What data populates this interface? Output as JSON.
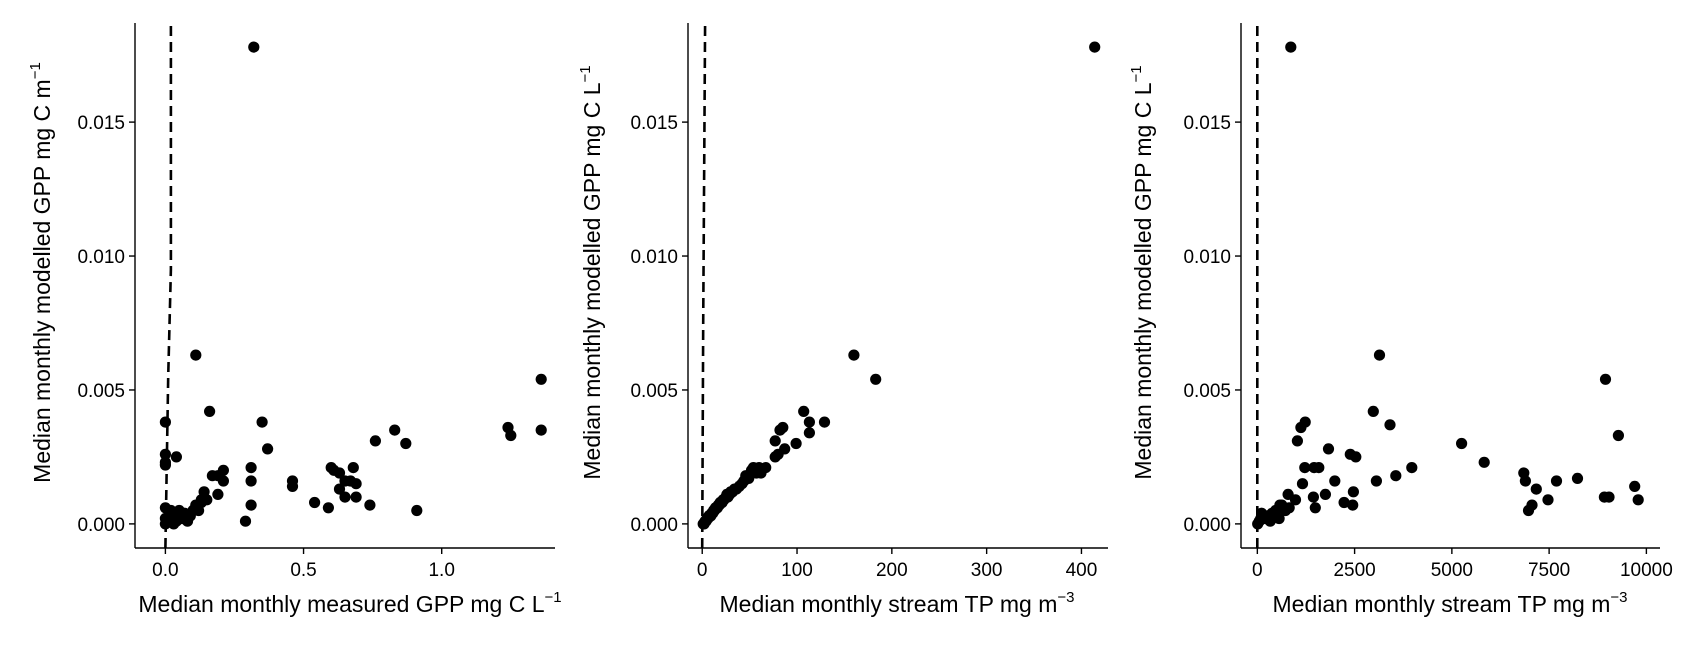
{
  "chart_data": [
    {
      "type": "scatter",
      "xlabel": "Median monthly measured GPP mg C L",
      "xlabel_sup": "−1",
      "ylabel": "Median monthly modelled GPP mg C m",
      "ylabel_sup": "−1",
      "xlim": [
        -0.11,
        1.41
      ],
      "ylim": [
        -0.0009,
        0.0187
      ],
      "xticks": [
        {
          "v": 0.0,
          "label": "0.0"
        },
        {
          "v": 0.5,
          "label": "0.5"
        },
        {
          "v": 1.0,
          "label": "1.0"
        }
      ],
      "yticks": [
        {
          "v": 0.0,
          "label": "0.000"
        },
        {
          "v": 0.005,
          "label": "0.005"
        },
        {
          "v": 0.01,
          "label": "0.010"
        },
        {
          "v": 0.015,
          "label": "0.015"
        }
      ],
      "reference_line": {
        "style": "dashed",
        "points": [
          [
            0.0,
            -0.0009
          ],
          [
            0.01,
            0.0055
          ],
          [
            0.02,
            0.0095
          ],
          [
            0.02,
            0.0187
          ]
        ]
      },
      "points": [
        [
          0.32,
          0.0178
        ],
        [
          0.11,
          0.0063
        ],
        [
          1.36,
          0.0054
        ],
        [
          0.16,
          0.0042
        ],
        [
          0.35,
          0.0038
        ],
        [
          0.0,
          0.0038
        ],
        [
          1.24,
          0.0036
        ],
        [
          0.83,
          0.0035
        ],
        [
          1.36,
          0.0035
        ],
        [
          1.25,
          0.0033
        ],
        [
          0.76,
          0.0031
        ],
        [
          0.87,
          0.003
        ],
        [
          0.37,
          0.0028
        ],
        [
          0.0,
          0.0026
        ],
        [
          0.04,
          0.0025
        ],
        [
          0.0,
          0.0023
        ],
        [
          0.0,
          0.0022
        ],
        [
          0.31,
          0.0021
        ],
        [
          0.6,
          0.0021
        ],
        [
          0.68,
          0.0021
        ],
        [
          0.21,
          0.002
        ],
        [
          0.61,
          0.002
        ],
        [
          0.63,
          0.0019
        ],
        [
          0.19,
          0.0018
        ],
        [
          0.17,
          0.0018
        ],
        [
          0.46,
          0.0016
        ],
        [
          0.31,
          0.0016
        ],
        [
          0.65,
          0.0016
        ],
        [
          0.69,
          0.0015
        ],
        [
          0.67,
          0.0016
        ],
        [
          0.21,
          0.0016
        ],
        [
          0.46,
          0.0014
        ],
        [
          0.63,
          0.0013
        ],
        [
          0.14,
          0.0012
        ],
        [
          0.19,
          0.0011
        ],
        [
          0.65,
          0.001
        ],
        [
          0.69,
          0.001
        ],
        [
          0.13,
          0.0009
        ],
        [
          0.54,
          0.0008
        ],
        [
          0.74,
          0.0007
        ],
        [
          0.31,
          0.0007
        ],
        [
          0.11,
          0.0007
        ],
        [
          0.13,
          0.0008
        ],
        [
          0.59,
          0.0006
        ],
        [
          0.91,
          0.0005
        ],
        [
          0.0,
          0.0006
        ],
        [
          0.05,
          0.0005
        ],
        [
          0.1,
          0.0005
        ],
        [
          0.03,
          0.0004
        ],
        [
          0.07,
          0.0004
        ],
        [
          0.02,
          0.0003
        ],
        [
          0.05,
          0.0003
        ],
        [
          0.09,
          0.0003
        ],
        [
          0.0,
          0.0002
        ],
        [
          0.06,
          0.0002
        ],
        [
          0.01,
          0.0001
        ],
        [
          0.04,
          0.0001
        ],
        [
          0.29,
          0.0001
        ],
        [
          0.0,
          0.0
        ],
        [
          0.03,
          0.0
        ],
        [
          0.08,
          0.0001
        ],
        [
          0.12,
          0.0005
        ],
        [
          0.15,
          0.0009
        ],
        [
          0.02,
          0.0005
        ]
      ]
    },
    {
      "type": "scatter",
      "xlabel": "Median monthly stream TP mg m",
      "xlabel_sup": "−3",
      "ylabel": "Median monthly modelled GPP mg C L",
      "ylabel_sup": "−1",
      "xlim": [
        -15,
        428
      ],
      "ylim": [
        -0.0009,
        0.0187
      ],
      "xticks": [
        {
          "v": 0,
          "label": "0"
        },
        {
          "v": 100,
          "label": "100"
        },
        {
          "v": 200,
          "label": "200"
        },
        {
          "v": 300,
          "label": "300"
        },
        {
          "v": 400,
          "label": "400"
        }
      ],
      "yticks": [
        {
          "v": 0.0,
          "label": "0.000"
        },
        {
          "v": 0.005,
          "label": "0.005"
        },
        {
          "v": 0.01,
          "label": "0.010"
        },
        {
          "v": 0.015,
          "label": "0.015"
        }
      ],
      "reference_line": {
        "style": "dashed",
        "points": [
          [
            0,
            -0.0009
          ],
          [
            1,
            0.0075
          ],
          [
            3,
            0.0187
          ]
        ]
      },
      "points": [
        [
          414,
          0.0178
        ],
        [
          160,
          0.0063
        ],
        [
          183,
          0.0054
        ],
        [
          107,
          0.0042
        ],
        [
          129,
          0.0038
        ],
        [
          113,
          0.0038
        ],
        [
          85,
          0.0036
        ],
        [
          82,
          0.0035
        ],
        [
          113,
          0.0034
        ],
        [
          77,
          0.0031
        ],
        [
          99,
          0.003
        ],
        [
          87,
          0.0028
        ],
        [
          80,
          0.0026
        ],
        [
          77,
          0.0025
        ],
        [
          54,
          0.0021
        ],
        [
          60,
          0.0021
        ],
        [
          67,
          0.0021
        ],
        [
          52,
          0.002
        ],
        [
          62,
          0.0019
        ],
        [
          46,
          0.0018
        ],
        [
          49,
          0.0017
        ],
        [
          44,
          0.0016
        ],
        [
          42,
          0.0015
        ],
        [
          39,
          0.0014
        ],
        [
          32,
          0.0012
        ],
        [
          29,
          0.0011
        ],
        [
          27,
          0.001
        ],
        [
          25,
          0.001
        ],
        [
          23,
          0.0009
        ],
        [
          21,
          0.0008
        ],
        [
          19,
          0.0008
        ],
        [
          17,
          0.0007
        ],
        [
          16,
          0.0006
        ],
        [
          14,
          0.0006
        ],
        [
          13,
          0.0005
        ],
        [
          11,
          0.0004
        ],
        [
          10,
          0.0004
        ],
        [
          8,
          0.0003
        ],
        [
          7,
          0.0003
        ],
        [
          6,
          0.0002
        ],
        [
          5,
          0.0002
        ],
        [
          4,
          0.0001
        ],
        [
          3,
          0.0001
        ],
        [
          2,
          0.0
        ],
        [
          1,
          0.0
        ],
        [
          30,
          0.0012
        ],
        [
          26,
          0.0011
        ],
        [
          36,
          0.0013
        ],
        [
          57,
          0.0019
        ],
        [
          47,
          0.0017
        ],
        [
          34,
          0.0013
        ],
        [
          22,
          0.0009
        ],
        [
          18,
          0.0007
        ],
        [
          12,
          0.0005
        ],
        [
          9,
          0.0003
        ]
      ]
    },
    {
      "type": "scatter",
      "xlabel": "Median monthly stream TP mg m",
      "xlabel_sup": "−3",
      "ylabel": "Median monthly modelled GPP mg C L",
      "ylabel_sup": "−1",
      "xlim": [
        -420,
        10350
      ],
      "ylim": [
        -0.0009,
        0.0187
      ],
      "xticks": [
        {
          "v": 0,
          "label": "0"
        },
        {
          "v": 2500,
          "label": "2500"
        },
        {
          "v": 5000,
          "label": "5000"
        },
        {
          "v": 7500,
          "label": "7500"
        },
        {
          "v": 10000,
          "label": "10000"
        }
      ],
      "yticks": [
        {
          "v": 0.0,
          "label": "0.000"
        },
        {
          "v": 0.005,
          "label": "0.005"
        },
        {
          "v": 0.01,
          "label": "0.010"
        },
        {
          "v": 0.015,
          "label": "0.015"
        }
      ],
      "reference_line": {
        "style": "dashed",
        "points": [
          [
            0,
            -0.0009
          ],
          [
            0,
            0.0187
          ]
        ]
      },
      "points": [
        [
          860,
          0.0178
        ],
        [
          3140,
          0.0063
        ],
        [
          8950,
          0.0054
        ],
        [
          2980,
          0.0042
        ],
        [
          1230,
          0.0038
        ],
        [
          3410,
          0.0037
        ],
        [
          1120,
          0.0036
        ],
        [
          9280,
          0.0033
        ],
        [
          1030,
          0.0031
        ],
        [
          5250,
          0.003
        ],
        [
          1830,
          0.0028
        ],
        [
          2390,
          0.0026
        ],
        [
          2530,
          0.0025
        ],
        [
          5830,
          0.0023
        ],
        [
          3970,
          0.0021
        ],
        [
          1220,
          0.0021
        ],
        [
          1580,
          0.0021
        ],
        [
          1460,
          0.0021
        ],
        [
          6850,
          0.0019
        ],
        [
          3560,
          0.0018
        ],
        [
          8230,
          0.0017
        ],
        [
          1990,
          0.0016
        ],
        [
          3060,
          0.0016
        ],
        [
          6890,
          0.0016
        ],
        [
          7690,
          0.0016
        ],
        [
          9700,
          0.0014
        ],
        [
          1160,
          0.0015
        ],
        [
          7170,
          0.0013
        ],
        [
          2470,
          0.0012
        ],
        [
          1750,
          0.0011
        ],
        [
          790,
          0.0011
        ],
        [
          1440,
          0.001
        ],
        [
          8920,
          0.001
        ],
        [
          9040,
          0.001
        ],
        [
          9790,
          0.0009
        ],
        [
          7470,
          0.0009
        ],
        [
          2230,
          0.0008
        ],
        [
          2450,
          0.0007
        ],
        [
          7060,
          0.0007
        ],
        [
          6970,
          0.0005
        ],
        [
          1490,
          0.0006
        ],
        [
          630,
          0.0007
        ],
        [
          470,
          0.0005
        ],
        [
          580,
          0.0007
        ],
        [
          380,
          0.0004
        ],
        [
          720,
          0.0005
        ],
        [
          270,
          0.0003
        ],
        [
          160,
          0.0003
        ],
        [
          90,
          0.0002
        ],
        [
          50,
          0.0001
        ],
        [
          10,
          0.0
        ],
        [
          110,
          0.0004
        ],
        [
          200,
          0.0002
        ],
        [
          330,
          0.0001
        ],
        [
          560,
          0.0002
        ],
        [
          430,
          0.0003
        ],
        [
          300,
          0.0002
        ],
        [
          820,
          0.0006
        ],
        [
          980,
          0.0009
        ]
      ]
    }
  ]
}
